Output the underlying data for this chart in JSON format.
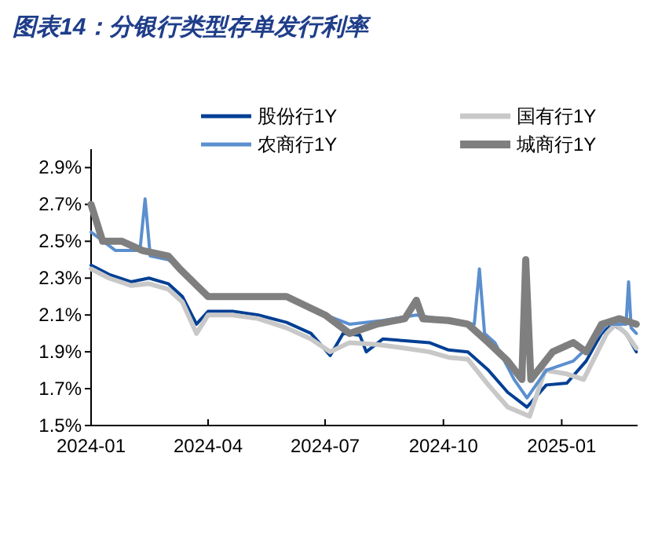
{
  "chart_data": {
    "type": "line",
    "title": "图表14：分银行类型存单发行利率",
    "legend": "top",
    "grid": false,
    "xlim": [
      "2024-01-01",
      "2025-03-01"
    ],
    "xticks": [
      "2024-01",
      "2024-04",
      "2024-07",
      "2024-10",
      "2025-01"
    ],
    "ylim": [
      1.5,
      3.0
    ],
    "yticks": [
      {
        "value": 1.5,
        "label": "1.5%"
      },
      {
        "value": 1.7,
        "label": "1.7%"
      },
      {
        "value": 1.9,
        "label": "1.9%"
      },
      {
        "value": 2.1,
        "label": "2.1%"
      },
      {
        "value": 2.3,
        "label": "2.3%"
      },
      {
        "value": 2.5,
        "label": "2.5%"
      },
      {
        "value": 2.7,
        "label": "2.7%"
      },
      {
        "value": 2.9,
        "label": "2.9%"
      }
    ],
    "series": [
      {
        "name": "股份行1Y",
        "color": "#003f94",
        "x": [
          "2024-01-01",
          "2024-01-15",
          "2024-02-01",
          "2024-02-15",
          "2024-03-01",
          "2024-03-12",
          "2024-03-23",
          "2024-04-01",
          "2024-04-20",
          "2024-05-10",
          "2024-06-01",
          "2024-06-20",
          "2024-07-05",
          "2024-07-15",
          "2024-07-28",
          "2024-08-02",
          "2024-08-15",
          "2024-09-01",
          "2024-09-20",
          "2024-10-05",
          "2024-10-20",
          "2024-11-05",
          "2024-11-20",
          "2024-12-05",
          "2024-12-20",
          "2025-01-05",
          "2025-01-20",
          "2025-02-01",
          "2025-02-10",
          "2025-02-20",
          "2025-02-28"
        ],
        "values": [
          2.37,
          2.32,
          2.28,
          2.3,
          2.27,
          2.2,
          2.05,
          2.12,
          2.12,
          2.1,
          2.06,
          2.0,
          1.88,
          2.0,
          1.99,
          1.9,
          1.97,
          1.96,
          1.95,
          1.91,
          1.9,
          1.8,
          1.68,
          1.6,
          1.72,
          1.73,
          1.85,
          2.0,
          2.05,
          2.0,
          1.9
        ]
      },
      {
        "name": "国有行1Y",
        "color": "#c8c8c8",
        "x": [
          "2024-01-01",
          "2024-01-15",
          "2024-02-01",
          "2024-02-15",
          "2024-03-01",
          "2024-03-12",
          "2024-03-23",
          "2024-04-01",
          "2024-04-20",
          "2024-05-10",
          "2024-06-01",
          "2024-06-20",
          "2024-07-05",
          "2024-07-20",
          "2024-08-10",
          "2024-09-01",
          "2024-09-20",
          "2024-10-05",
          "2024-10-20",
          "2024-11-05",
          "2024-11-20",
          "2024-12-07",
          "2024-12-19",
          "2025-01-05",
          "2025-01-18",
          "2025-02-05",
          "2025-02-12",
          "2025-02-20",
          "2025-02-28"
        ],
        "values": [
          2.35,
          2.3,
          2.26,
          2.27,
          2.24,
          2.17,
          2.0,
          2.1,
          2.1,
          2.08,
          2.03,
          1.97,
          1.9,
          1.95,
          1.94,
          1.92,
          1.9,
          1.87,
          1.86,
          1.72,
          1.6,
          1.55,
          1.8,
          1.78,
          1.75,
          2.0,
          2.05,
          2.0,
          1.92
        ]
      },
      {
        "name": "农商行1Y",
        "color": "#5b8fcf",
        "x": [
          "2024-01-01",
          "2024-01-20",
          "2024-02-08",
          "2024-02-12",
          "2024-02-16",
          "2024-03-01",
          "2024-03-12",
          "2024-04-01",
          "2024-05-01",
          "2024-06-01",
          "2024-07-01",
          "2024-07-20",
          "2024-08-15",
          "2024-09-10",
          "2024-10-05",
          "2024-10-25",
          "2024-10-29",
          "2024-11-02",
          "2024-11-10",
          "2024-11-25",
          "2024-12-05",
          "2024-12-20",
          "2025-01-10",
          "2025-01-25",
          "2025-02-05",
          "2025-02-20",
          "2025-02-22",
          "2025-02-24",
          "2025-02-28"
        ],
        "values": [
          2.55,
          2.45,
          2.45,
          2.73,
          2.42,
          2.4,
          2.35,
          2.2,
          2.2,
          2.2,
          2.1,
          2.05,
          2.07,
          2.1,
          2.07,
          2.05,
          2.35,
          2.0,
          1.95,
          1.75,
          1.65,
          1.8,
          1.85,
          1.95,
          2.05,
          2.05,
          2.28,
          2.03,
          2.0
        ]
      },
      {
        "name": "城商行1Y",
        "color": "#7f7f7f",
        "x": [
          "2024-01-01",
          "2024-01-10",
          "2024-01-25",
          "2024-02-10",
          "2024-03-01",
          "2024-03-10",
          "2024-04-01",
          "2024-05-01",
          "2024-06-01",
          "2024-07-01",
          "2024-07-20",
          "2024-08-10",
          "2024-09-01",
          "2024-09-10",
          "2024-09-15",
          "2024-10-05",
          "2024-10-20",
          "2024-11-05",
          "2024-11-20",
          "2024-12-01",
          "2024-12-04",
          "2024-12-08",
          "2024-12-25",
          "2025-01-10",
          "2025-01-20",
          "2025-02-01",
          "2025-02-15",
          "2025-02-28"
        ],
        "values": [
          2.7,
          2.5,
          2.5,
          2.45,
          2.42,
          2.35,
          2.2,
          2.2,
          2.2,
          2.1,
          2.0,
          2.05,
          2.08,
          2.18,
          2.08,
          2.07,
          2.05,
          1.95,
          1.85,
          1.75,
          2.4,
          1.75,
          1.9,
          1.95,
          1.9,
          2.05,
          2.08,
          2.05
        ]
      }
    ]
  }
}
